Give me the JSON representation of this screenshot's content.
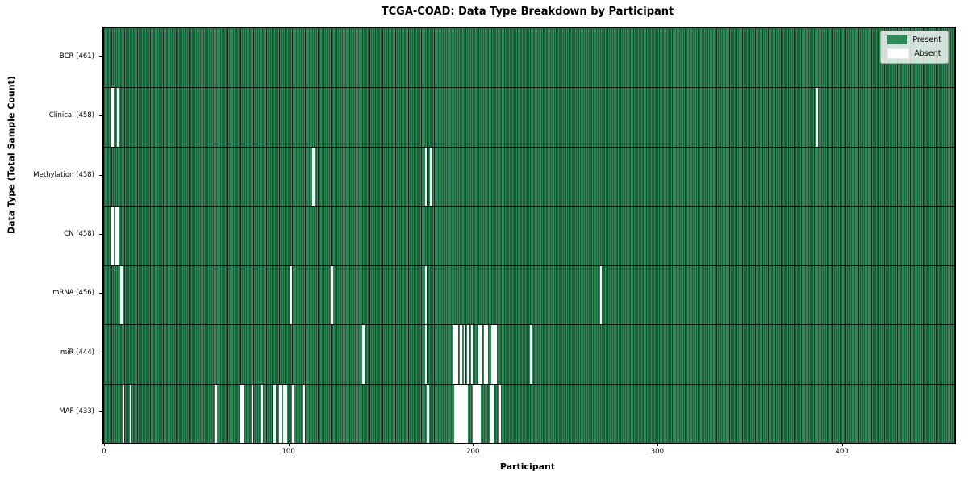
{
  "title": "TCGA-COAD: Data Type Breakdown by Participant",
  "legend": {
    "present_label": "Present",
    "absent_label": "Absent"
  },
  "colors": {
    "present": "#2e8b57",
    "absent": "#ffffff",
    "bar_edge": "#13301f",
    "plot_border": "#000000"
  },
  "chart_data": {
    "type": "heatmap",
    "title": "TCGA-COAD: Data Type Breakdown by Participant",
    "xlabel": "Participant",
    "ylabel": "Data Type (Total Sample Count)",
    "xlim": [
      0,
      461
    ],
    "x_ticks": [
      0,
      100,
      200,
      300,
      400
    ],
    "total_participants": 461,
    "grid": false,
    "legend_position": "upper right",
    "legend_entries": [
      "Present",
      "Absent"
    ],
    "rows": [
      {
        "label": "BCR (461)",
        "data_type": "BCR",
        "sample_count": 461,
        "absent_participants": []
      },
      {
        "label": "Clinical (458)",
        "data_type": "Clinical",
        "sample_count": 458,
        "absent_participants": [
          4,
          7,
          386
        ]
      },
      {
        "label": "Methylation (458)",
        "data_type": "Methylation",
        "sample_count": 458,
        "absent_participants": [
          113,
          174,
          177
        ]
      },
      {
        "label": "CN (458)",
        "data_type": "CN",
        "sample_count": 458,
        "absent_participants": [
          4,
          6,
          7
        ]
      },
      {
        "label": "mRNA (456)",
        "data_type": "mRNA",
        "sample_count": 456,
        "absent_participants": [
          9,
          101,
          123,
          174,
          269
        ]
      },
      {
        "label": "miR (444)",
        "data_type": "miR",
        "sample_count": 444,
        "absent_participants": [
          140,
          174,
          189,
          190,
          191,
          193,
          195,
          197,
          199,
          203,
          204,
          206,
          207,
          210,
          211,
          212,
          231
        ]
      },
      {
        "label": "MAF (433)",
        "data_type": "MAF",
        "sample_count": 433,
        "absent_participants": [
          10,
          14,
          60,
          74,
          75,
          80,
          85,
          92,
          95,
          97,
          98,
          102,
          108,
          175,
          190,
          191,
          192,
          193,
          194,
          195,
          196,
          200,
          201,
          202,
          203,
          209,
          210,
          214
        ]
      }
    ]
  }
}
